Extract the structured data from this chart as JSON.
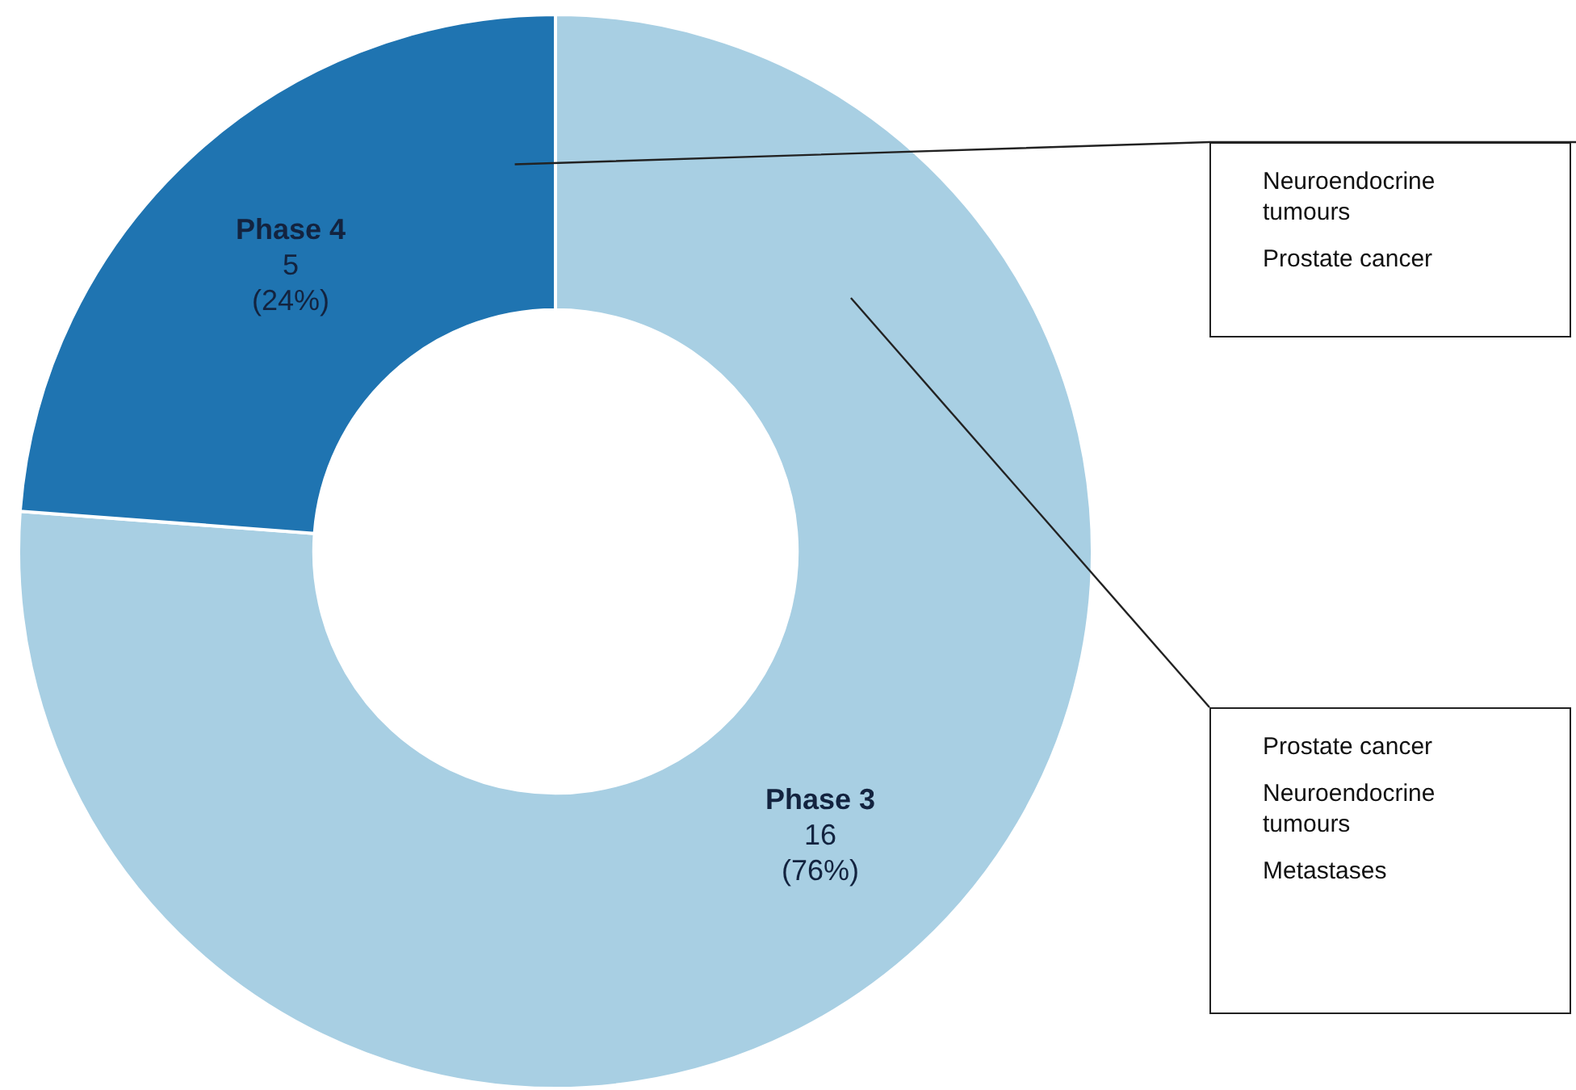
{
  "chart_data": {
    "type": "donut",
    "categories": [
      "Phase 3",
      "Phase 4"
    ],
    "values": [
      16,
      5
    ],
    "colors": [
      "#a8cfe3",
      "#1f74b1"
    ],
    "value_labels": [
      "16\n(76%)",
      "5\n(24%)"
    ],
    "legend": false,
    "annotations": [
      {
        "text": "Neuroendocrine tumours\nProstate cancer",
        "x": "Phase 4"
      },
      {
        "text": "Prostate cancer\nNeuroendocrine tumours\nMetastases",
        "x": "Phase 3"
      }
    ]
  }
}
